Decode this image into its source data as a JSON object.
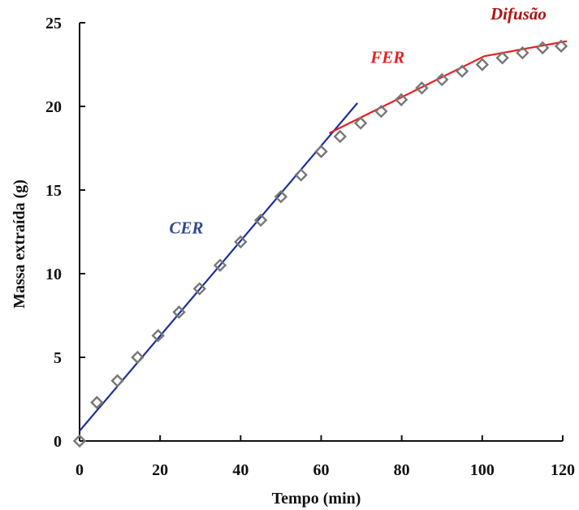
{
  "chart_data": {
    "type": "scatter",
    "title": "",
    "xlabel": "Tempo (min)",
    "ylabel": "Massa extraída (g)",
    "xlim": [
      0,
      120
    ],
    "ylim": [
      0,
      25
    ],
    "x_ticks": [
      "0",
      "20",
      "40",
      "60",
      "80",
      "100",
      "120"
    ],
    "y_ticks": [
      "0",
      "5",
      "10",
      "15",
      "20",
      "25"
    ],
    "grid": false,
    "series": [
      {
        "marker": "diamond",
        "color": "#777777",
        "x": [
          0,
          4.3,
          9.4,
          14.4,
          19.5,
          24.7,
          29.8,
          34.9,
          40.0,
          45.0,
          50.0,
          55.0,
          60.0,
          64.7,
          69.8,
          74.9,
          79.9,
          85.0,
          90.0,
          95.0,
          100.0,
          105.0,
          110.0,
          115.0,
          119.6
        ],
        "y": [
          0,
          2.3,
          3.6,
          5.0,
          6.3,
          7.7,
          9.1,
          10.5,
          11.9,
          13.2,
          14.6,
          15.9,
          17.3,
          18.2,
          19.0,
          19.7,
          20.4,
          21.1,
          21.6,
          22.1,
          22.5,
          22.9,
          23.2,
          23.5,
          23.6
        ]
      }
    ],
    "fit_lines": [
      {
        "name": "CER",
        "color": "#1f2f9a",
        "x": [
          0,
          69.0
        ],
        "y": [
          0.6,
          20.2
        ]
      },
      {
        "name": "FER",
        "color": "#ee1c1c",
        "x": [
          62.0,
          100.5
        ],
        "y": [
          18.4,
          23.0
        ]
      },
      {
        "name": "Difusão",
        "color": "#ee1c1c",
        "x": [
          100.5,
          121.0
        ],
        "y": [
          23.0,
          23.9
        ]
      }
    ],
    "annotations": [
      {
        "text": "CER",
        "color": "#2e4a8c",
        "x": 26.5,
        "y": 12.4
      },
      {
        "text": "FER",
        "color": "#e62020",
        "x": 76.5,
        "y": 22.6
      },
      {
        "text": "Difusão",
        "color": "#b01010",
        "x": 109.0,
        "y": 25.2
      }
    ]
  }
}
